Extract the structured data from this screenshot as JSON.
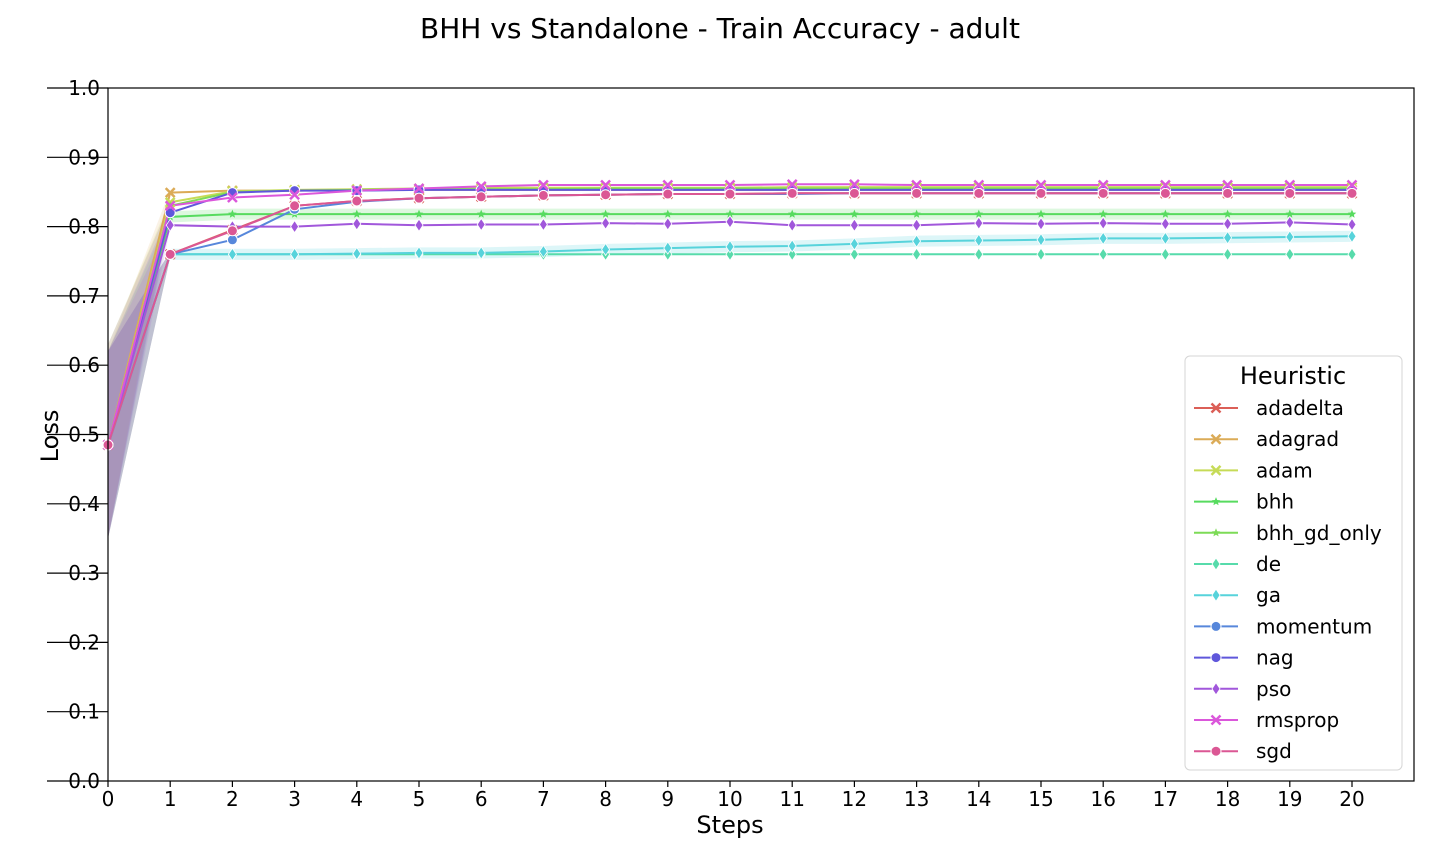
{
  "chart_data": {
    "type": "line",
    "title": "BHH vs Standalone - Train Accuracy - adult",
    "xlabel": "Steps",
    "ylabel": "Loss",
    "xlim": [
      0,
      20
    ],
    "ylim": [
      0.0,
      1.0
    ],
    "xticks": [
      "0",
      "1",
      "2",
      "3",
      "4",
      "5",
      "6",
      "7",
      "8",
      "9",
      "10",
      "11",
      "12",
      "13",
      "14",
      "15",
      "16",
      "17",
      "18",
      "19",
      "20"
    ],
    "yticks": [
      "0.0",
      "0.1",
      "0.2",
      "0.3",
      "0.4",
      "0.5",
      "0.6",
      "0.7",
      "0.8",
      "0.9",
      "1.0"
    ],
    "grid": false,
    "legend": {
      "title": "Heuristic",
      "placement": "lower-right"
    },
    "x": [
      0,
      1,
      2,
      3,
      4,
      5,
      6,
      7,
      8,
      9,
      10,
      11,
      12,
      13,
      14,
      15,
      16,
      17,
      18,
      19,
      20
    ],
    "series": [
      {
        "name": "adadelta",
        "color": "#db5f57",
        "marker": "x",
        "values": [
          0.485,
          0.76,
          0.795,
          0.83,
          0.837,
          0.841,
          0.843,
          0.845,
          0.846,
          0.847,
          0.847,
          0.848,
          0.848,
          0.848,
          0.848,
          0.848,
          0.848,
          0.848,
          0.848,
          0.848,
          0.848
        ],
        "band": [
          0.35,
          0.62
        ]
      },
      {
        "name": "adagrad",
        "color": "#dbab57",
        "marker": "x",
        "values": [
          0.485,
          0.849,
          0.852,
          0.852,
          0.853,
          0.853,
          0.853,
          0.853,
          0.853,
          0.853,
          0.853,
          0.853,
          0.853,
          0.853,
          0.853,
          0.853,
          0.853,
          0.853,
          0.853,
          0.853,
          0.853
        ],
        "band": [
          0.35,
          0.62
        ]
      },
      {
        "name": "adam",
        "color": "#c6db57",
        "marker": "x",
        "values": [
          0.485,
          0.835,
          0.851,
          0.853,
          0.854,
          0.855,
          0.856,
          0.856,
          0.856,
          0.856,
          0.856,
          0.857,
          0.857,
          0.857,
          0.857,
          0.857,
          0.857,
          0.857,
          0.857,
          0.857,
          0.857
        ],
        "band": [
          0.35,
          0.63
        ]
      },
      {
        "name": "bhh",
        "color": "#57db5f",
        "marker": "star",
        "values": [
          0.485,
          0.814,
          0.818,
          0.818,
          0.818,
          0.818,
          0.818,
          0.818,
          0.818,
          0.818,
          0.818,
          0.818,
          0.818,
          0.818,
          0.818,
          0.818,
          0.818,
          0.818,
          0.818,
          0.818,
          0.818
        ],
        "band": [
          0.35,
          0.62
        ]
      },
      {
        "name": "bhh_gd_only",
        "color": "#7ddb57",
        "marker": "star",
        "values": [
          0.485,
          0.83,
          0.85,
          0.852,
          0.853,
          0.854,
          0.854,
          0.854,
          0.855,
          0.855,
          0.855,
          0.855,
          0.855,
          0.855,
          0.855,
          0.855,
          0.855,
          0.855,
          0.855,
          0.855,
          0.855
        ],
        "band": [
          0.35,
          0.63
        ]
      },
      {
        "name": "de",
        "color": "#57dbab",
        "marker": "diamond",
        "values": [
          0.485,
          0.76,
          0.76,
          0.76,
          0.76,
          0.76,
          0.76,
          0.76,
          0.76,
          0.76,
          0.76,
          0.76,
          0.76,
          0.76,
          0.76,
          0.76,
          0.76,
          0.76,
          0.76,
          0.76,
          0.76
        ],
        "band": [
          0.35,
          0.62
        ]
      },
      {
        "name": "ga",
        "color": "#57d3db",
        "marker": "diamond",
        "values": [
          0.485,
          0.76,
          0.76,
          0.76,
          0.761,
          0.762,
          0.762,
          0.764,
          0.767,
          0.769,
          0.771,
          0.772,
          0.775,
          0.779,
          0.78,
          0.781,
          0.783,
          0.783,
          0.784,
          0.785,
          0.786
        ],
        "band": [
          0.35,
          0.62
        ]
      },
      {
        "name": "momentum",
        "color": "#5787db",
        "marker": "o",
        "values": [
          0.485,
          0.76,
          0.781,
          0.825,
          0.836,
          0.841,
          0.843,
          0.845,
          0.846,
          0.847,
          0.847,
          0.847,
          0.848,
          0.848,
          0.848,
          0.848,
          0.848,
          0.848,
          0.848,
          0.848,
          0.848
        ],
        "band": [
          0.35,
          0.62
        ]
      },
      {
        "name": "nag",
        "color": "#5f57db",
        "marker": "o",
        "values": [
          0.485,
          0.82,
          0.849,
          0.852,
          0.852,
          0.853,
          0.853,
          0.853,
          0.853,
          0.853,
          0.853,
          0.853,
          0.853,
          0.853,
          0.853,
          0.853,
          0.853,
          0.853,
          0.853,
          0.853,
          0.853
        ],
        "band": [
          0.35,
          0.62
        ]
      },
      {
        "name": "pso",
        "color": "#a157db",
        "marker": "diamond",
        "values": [
          0.485,
          0.802,
          0.8,
          0.8,
          0.804,
          0.802,
          0.803,
          0.803,
          0.805,
          0.804,
          0.807,
          0.802,
          0.802,
          0.802,
          0.805,
          0.804,
          0.805,
          0.804,
          0.804,
          0.806,
          0.803
        ],
        "band": [
          0.35,
          0.62
        ]
      },
      {
        "name": "rmsprop",
        "color": "#db57db",
        "marker": "x",
        "values": [
          0.485,
          0.83,
          0.842,
          0.846,
          0.852,
          0.855,
          0.858,
          0.86,
          0.86,
          0.86,
          0.86,
          0.861,
          0.861,
          0.86,
          0.86,
          0.86,
          0.86,
          0.86,
          0.86,
          0.86,
          0.86
        ],
        "band": [
          0.35,
          0.63
        ]
      },
      {
        "name": "sgd",
        "color": "#db5794",
        "marker": "o",
        "values": [
          0.485,
          0.76,
          0.794,
          0.83,
          0.837,
          0.841,
          0.843,
          0.845,
          0.846,
          0.847,
          0.847,
          0.848,
          0.848,
          0.848,
          0.848,
          0.848,
          0.848,
          0.848,
          0.848,
          0.848,
          0.848
        ],
        "band": [
          0.35,
          0.62
        ]
      }
    ]
  }
}
